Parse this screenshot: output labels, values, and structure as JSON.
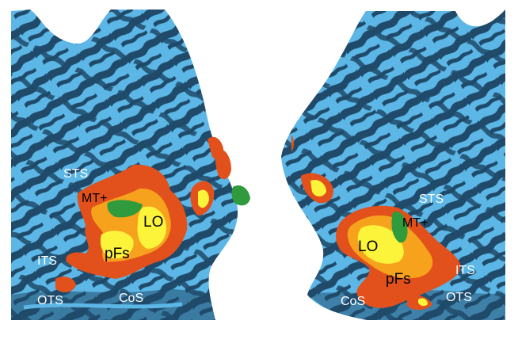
{
  "colors": {
    "background": "#ffffff",
    "cortex_sulcus": "#1f4a6a",
    "cortex_gyrus": "#5cb6e6",
    "activation_low": "#e2501b",
    "activation_mid": "#f6a21d",
    "activation_high": "#fbf43a",
    "motion_region": "#2f9b3c"
  },
  "left_hemisphere": {
    "labels": {
      "sts": "STS",
      "mt": "MT+",
      "lo": "LO",
      "its": "ITS",
      "pfs": "pFs",
      "ots": "OTS",
      "cos": "CoS"
    }
  },
  "right_hemisphere": {
    "labels": {
      "sts": "STS",
      "mt": "MT+",
      "lo": "LO",
      "its": "ITS",
      "pfs": "pFs",
      "ots": "OTS",
      "cos": "CoS"
    }
  }
}
